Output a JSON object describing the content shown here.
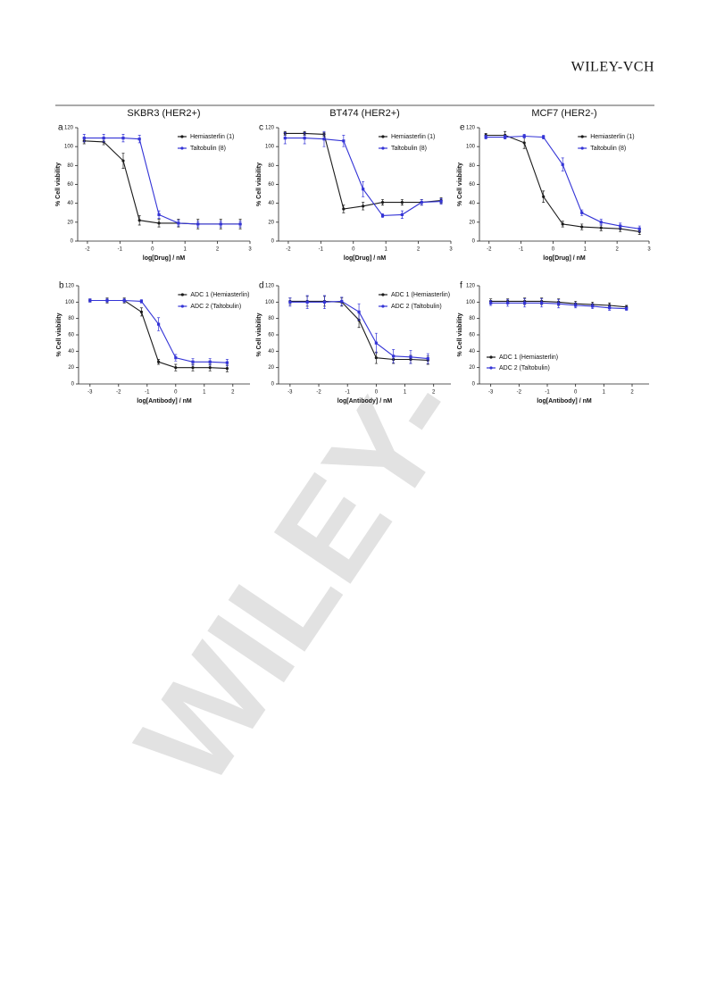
{
  "header": {
    "publisher": "WILEY-VCH"
  },
  "watermark": "WILEY-",
  "chart_data": [
    {
      "type": "line",
      "panel": "a",
      "title": "SKBR3 (HER2+)",
      "x_label": "log[Drug] / nM",
      "y_label": "% Cell viability",
      "xlim": [
        -2.3,
        3
      ],
      "xticks": [
        -2,
        -1,
        0,
        1,
        2,
        3
      ],
      "ylim": [
        0,
        120
      ],
      "yticks": [
        0,
        20,
        40,
        60,
        80,
        100,
        120
      ],
      "legend": "upper right",
      "x": [
        -2.1,
        -1.5,
        -0.9,
        -0.4,
        0.2,
        0.8,
        1.4,
        2.1,
        2.7
      ],
      "series": [
        {
          "name": "Hemiasterlin (1)",
          "color": "#1a1a1a",
          "values": [
            106,
            105,
            85,
            22,
            19,
            19,
            18,
            18,
            18
          ],
          "errors": [
            3,
            3,
            8,
            5,
            4,
            4,
            5,
            5,
            5
          ]
        },
        {
          "name": "Taltobulin (8)",
          "color": "#3434d6",
          "values": [
            109,
            109,
            109,
            108,
            28,
            19,
            18,
            18,
            18
          ],
          "errors": [
            4,
            4,
            4,
            4,
            4,
            3,
            3,
            3,
            3
          ]
        }
      ]
    },
    {
      "type": "line",
      "panel": "c",
      "title": "BT474 (HER2+)",
      "x_label": "log[Drug] / nM",
      "y_label": "% Cell viability",
      "xlim": [
        -2.3,
        3
      ],
      "xticks": [
        -2,
        -1,
        0,
        1,
        2,
        3
      ],
      "ylim": [
        0,
        120
      ],
      "yticks": [
        0,
        20,
        40,
        60,
        80,
        100,
        120
      ],
      "legend": "upper right",
      "x": [
        -2.1,
        -1.5,
        -0.9,
        -0.3,
        0.3,
        0.9,
        1.5,
        2.1,
        2.7
      ],
      "series": [
        {
          "name": "Hemiasterlin (1)",
          "color": "#1a1a1a",
          "values": [
            114,
            114,
            113,
            34,
            37,
            41,
            41,
            41,
            43
          ],
          "errors": [
            2,
            2,
            2,
            4,
            4,
            3,
            3,
            3,
            3
          ]
        },
        {
          "name": "Taltobulin (8)",
          "color": "#3434d6",
          "values": [
            109,
            109,
            108,
            106,
            55,
            27,
            28,
            41,
            42
          ],
          "errors": [
            6,
            6,
            8,
            6,
            8,
            2,
            4,
            3,
            3
          ]
        }
      ]
    },
    {
      "type": "line",
      "panel": "e",
      "title": "MCF7 (HER2-)",
      "x_label": "log[Drug] / nM",
      "y_label": "% Cell viability",
      "xlim": [
        -2.3,
        3
      ],
      "xticks": [
        -2,
        -1,
        0,
        1,
        2,
        3
      ],
      "ylim": [
        0,
        120
      ],
      "yticks": [
        0,
        20,
        40,
        60,
        80,
        100,
        120
      ],
      "legend": "upper right",
      "x": [
        -2.1,
        -1.5,
        -0.9,
        -0.3,
        0.3,
        0.9,
        1.5,
        2.1,
        2.7
      ],
      "series": [
        {
          "name": "Hemiasterlin (1)",
          "color": "#1a1a1a",
          "values": [
            112,
            112,
            104,
            47,
            18,
            15,
            14,
            13,
            10
          ],
          "errors": [
            2,
            4,
            6,
            6,
            3,
            3,
            3,
            3,
            3
          ]
        },
        {
          "name": "Taltobulin (8)",
          "color": "#3434d6",
          "values": [
            110,
            110,
            111,
            110,
            81,
            30,
            20,
            16,
            13
          ],
          "errors": [
            2,
            2,
            2,
            2,
            7,
            3,
            3,
            3,
            3
          ]
        }
      ]
    },
    {
      "type": "line",
      "panel": "b",
      "x_label": "log[Antibody] / nM",
      "y_label": "% Cell viability",
      "xlim": [
        -3.4,
        2.6
      ],
      "xticks": [
        -3,
        -2,
        -1,
        0,
        1,
        2
      ],
      "ylim": [
        0,
        120
      ],
      "yticks": [
        0,
        20,
        40,
        60,
        80,
        100,
        120
      ],
      "legend": "upper right",
      "x": [
        -3,
        -2.4,
        -1.8,
        -1.2,
        -0.6,
        0,
        0.6,
        1.2,
        1.8
      ],
      "series": [
        {
          "name": "ADC 1 (Hemiasterlin)",
          "color": "#1a1a1a",
          "values": [
            102,
            102,
            102,
            88,
            27,
            20,
            20,
            20,
            19
          ],
          "errors": [
            2,
            3,
            3,
            5,
            3,
            4,
            4,
            4,
            4
          ]
        },
        {
          "name": "ADC 2 (Taltobulin)",
          "color": "#3434d6",
          "values": [
            102,
            102,
            102,
            101,
            73,
            32,
            27,
            27,
            26
          ],
          "errors": [
            2,
            2,
            2,
            2,
            8,
            4,
            4,
            4,
            4
          ]
        }
      ]
    },
    {
      "type": "line",
      "panel": "d",
      "x_label": "log[Antibody] / nM",
      "y_label": "% Cell viability",
      "xlim": [
        -3.4,
        2.6
      ],
      "xticks": [
        -3,
        -2,
        -1,
        0,
        1,
        2
      ],
      "ylim": [
        0,
        120
      ],
      "yticks": [
        0,
        20,
        40,
        60,
        80,
        100,
        120
      ],
      "legend": "upper right",
      "x": [
        -3,
        -2.4,
        -1.8,
        -1.2,
        -0.6,
        0,
        0.6,
        1.2,
        1.8
      ],
      "series": [
        {
          "name": "ADC 1 (Hemiasterlin)",
          "color": "#1a1a1a",
          "values": [
            101,
            101,
            101,
            100,
            78,
            32,
            30,
            30,
            29
          ],
          "errors": [
            4,
            6,
            6,
            5,
            9,
            7,
            5,
            5,
            5
          ]
        },
        {
          "name": "ADC 2 (Taltobulin)",
          "color": "#3434d6",
          "values": [
            100,
            100,
            100,
            101,
            88,
            50,
            34,
            33,
            31
          ],
          "errors": [
            5,
            8,
            8,
            5,
            10,
            12,
            8,
            8,
            6
          ]
        }
      ]
    },
    {
      "type": "line",
      "panel": "f",
      "x_label": "log[Antibody] / nM",
      "y_label": "% Cell viability",
      "xlim": [
        -3.4,
        2.6
      ],
      "xticks": [
        -3,
        -2,
        -1,
        0,
        1,
        2
      ],
      "ylim": [
        0,
        120
      ],
      "yticks": [
        0,
        20,
        40,
        60,
        80,
        100,
        120
      ],
      "legend": "lower left",
      "x": [
        -3,
        -2.4,
        -1.8,
        -1.2,
        -0.6,
        0,
        0.6,
        1.2,
        1.8
      ],
      "series": [
        {
          "name": "ADC 1 (Hemiasterlin)",
          "color": "#1a1a1a",
          "values": [
            101,
            101,
            101,
            101,
            100,
            98,
            97,
            96,
            94
          ],
          "errors": [
            3,
            3,
            4,
            4,
            4,
            3,
            3,
            3,
            2
          ]
        },
        {
          "name": "ADC 2 (Taltobulin)",
          "color": "#3434d6",
          "values": [
            99,
            99,
            99,
            99,
            98,
            96,
            95,
            93,
            92
          ],
          "errors": [
            3,
            4,
            5,
            5,
            5,
            3,
            3,
            3,
            2
          ]
        }
      ]
    }
  ]
}
